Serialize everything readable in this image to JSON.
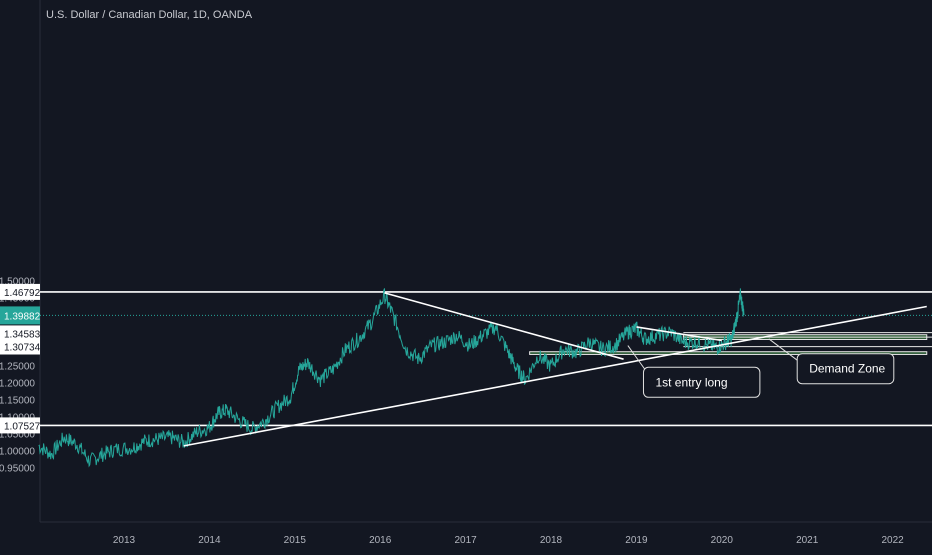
{
  "chart_data": {
    "type": "line",
    "title": "U.S. Dollar / Canadian Dollar, 1D, OANDA",
    "x_range": [
      2012.0,
      2022.4
    ],
    "ylim": [
      0.92,
      1.51
    ],
    "y_ticks": [
      "1.50000",
      "1.45000",
      "1.40000",
      "1.35000",
      "1.30000",
      "1.25000",
      "1.20000",
      "1.15000",
      "1.10000",
      "1.05000",
      "1.00000",
      "0.95000"
    ],
    "x_ticks": [
      "2013",
      "2014",
      "2015",
      "2016",
      "2017",
      "2018",
      "2019",
      "2020",
      "2021",
      "2022"
    ],
    "series": [
      {
        "color": "#26a69a",
        "points": [
          [
            2012.0,
            1.015
          ],
          [
            2012.15,
            0.99
          ],
          [
            2012.3,
            1.04
          ],
          [
            2012.45,
            1.02
          ],
          [
            2012.6,
            0.97
          ],
          [
            2012.75,
            0.99
          ],
          [
            2012.9,
            1.005
          ],
          [
            2013.1,
            1.01
          ],
          [
            2013.25,
            1.03
          ],
          [
            2013.4,
            1.035
          ],
          [
            2013.55,
            1.04
          ],
          [
            2013.7,
            1.025
          ],
          [
            2013.85,
            1.055
          ],
          [
            2014.0,
            1.07
          ],
          [
            2014.1,
            1.11
          ],
          [
            2014.2,
            1.12
          ],
          [
            2014.35,
            1.09
          ],
          [
            2014.5,
            1.065
          ],
          [
            2014.65,
            1.09
          ],
          [
            2014.8,
            1.13
          ],
          [
            2014.95,
            1.16
          ],
          [
            2015.05,
            1.24
          ],
          [
            2015.15,
            1.26
          ],
          [
            2015.3,
            1.21
          ],
          [
            2015.45,
            1.24
          ],
          [
            2015.6,
            1.3
          ],
          [
            2015.75,
            1.33
          ],
          [
            2015.9,
            1.38
          ],
          [
            2016.05,
            1.458
          ],
          [
            2016.15,
            1.4
          ],
          [
            2016.3,
            1.3
          ],
          [
            2016.45,
            1.27
          ],
          [
            2016.6,
            1.31
          ],
          [
            2016.75,
            1.32
          ],
          [
            2016.9,
            1.34
          ],
          [
            2017.05,
            1.31
          ],
          [
            2017.2,
            1.34
          ],
          [
            2017.35,
            1.365
          ],
          [
            2017.5,
            1.29
          ],
          [
            2017.6,
            1.24
          ],
          [
            2017.7,
            1.21
          ],
          [
            2017.85,
            1.28
          ],
          [
            2018.0,
            1.25
          ],
          [
            2018.15,
            1.3
          ],
          [
            2018.3,
            1.29
          ],
          [
            2018.45,
            1.32
          ],
          [
            2018.6,
            1.3
          ],
          [
            2018.75,
            1.31
          ],
          [
            2018.9,
            1.35
          ],
          [
            2019.0,
            1.36
          ],
          [
            2019.1,
            1.33
          ],
          [
            2019.25,
            1.34
          ],
          [
            2019.4,
            1.35
          ],
          [
            2019.55,
            1.32
          ],
          [
            2019.7,
            1.32
          ],
          [
            2019.85,
            1.31
          ],
          [
            2019.95,
            1.305
          ],
          [
            2020.05,
            1.32
          ],
          [
            2020.12,
            1.33
          ],
          [
            2020.18,
            1.4
          ],
          [
            2020.22,
            1.46
          ],
          [
            2020.26,
            1.4
          ]
        ]
      }
    ],
    "horizontal_lines": [
      {
        "label": "1.46792",
        "value": 1.46792
      },
      {
        "label": "1.07527",
        "value": 1.07527
      }
    ],
    "last_price": {
      "label": "1.39882",
      "value": 1.39882,
      "color": "#26a69a"
    },
    "price_labels": [
      {
        "label": "1.34583",
        "value": 1.34583
      },
      {
        "label": "1.30734",
        "value": 1.30734
      }
    ],
    "trend_lines": [
      {
        "from": [
          2013.7,
          1.015
        ],
        "to": [
          2022.4,
          1.425
        ]
      },
      {
        "from": [
          2016.05,
          1.465
        ],
        "to": [
          2018.85,
          1.27
        ]
      },
      {
        "from": [
          2019.0,
          1.365
        ],
        "to": [
          2020.0,
          1.325
        ]
      }
    ],
    "zones": [
      {
        "name": "upper-zone",
        "x_from": 2019.55,
        "x_to": 2022.4,
        "y_from": 1.328,
        "y_to": 1.342
      },
      {
        "name": "lower-zone",
        "x_from": 2017.75,
        "x_to": 2022.4,
        "y_from": 1.284,
        "y_to": 1.292
      }
    ],
    "zone_edges": [
      1.348,
      1.335,
      1.307
    ],
    "annotations": [
      {
        "text": "1st entry long",
        "at": [
          2019.2,
          1.205
        ],
        "target": [
          2018.9,
          1.31
        ]
      },
      {
        "text": "Demand Zone",
        "at": [
          2021.0,
          1.245
        ],
        "target": [
          2020.55,
          1.33
        ]
      }
    ]
  }
}
